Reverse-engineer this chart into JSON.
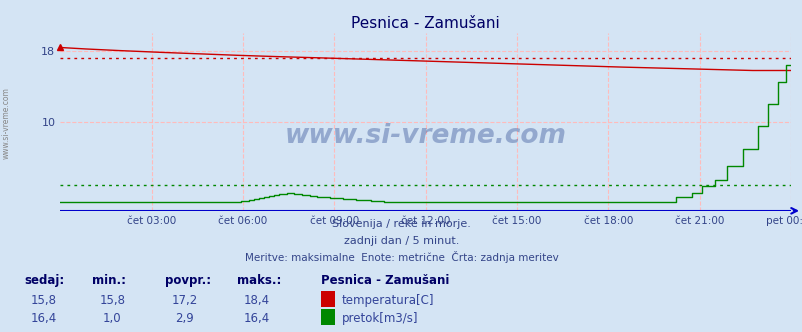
{
  "title": "Pesnica - Zamušani",
  "bg_color": "#d4e4f4",
  "plot_bg_color": "#d4e4f4",
  "x_ticks_labels": [
    "čet 03:00",
    "čet 06:00",
    "čet 09:00",
    "čet 12:00",
    "čet 15:00",
    "čet 18:00",
    "čet 21:00",
    "pet 00:00"
  ],
  "ylim": [
    0,
    20.0
  ],
  "y_tick_vals": [
    10,
    18
  ],
  "temp_color": "#cc0000",
  "flow_color": "#008800",
  "avg_temp": 17.2,
  "avg_flow": 2.9,
  "max_temp": 18.4,
  "max_flow": 16.4,
  "min_temp": 15.8,
  "min_flow": 1.0,
  "curr_temp": 15.8,
  "curr_flow": 16.4,
  "subtitle1": "Slovenija / reke in morje.",
  "subtitle2": "zadnji dan / 5 minut.",
  "subtitle3": "Meritve: maksimalne  Enote: metrične  Črta: zadnja meritev",
  "footer_label1": "sedaj:",
  "footer_label2": "min.:",
  "footer_label3": "povpr.:",
  "footer_label4": "maks.:",
  "footer_site": "Pesnica - Zamušani",
  "footer_temp_label": "temperatura[C]",
  "footer_flow_label": "pretok[m3/s]",
  "watermark": "www.si-vreme.com",
  "left_label": "www.si-vreme.com",
  "title_color": "#000066",
  "axis_color": "#334488",
  "text_color": "#334488",
  "footer_color": "#334488",
  "grid_color": "#ffbbbb",
  "blue_axis": "#0000cc",
  "watermark_color": "#1a3a88"
}
